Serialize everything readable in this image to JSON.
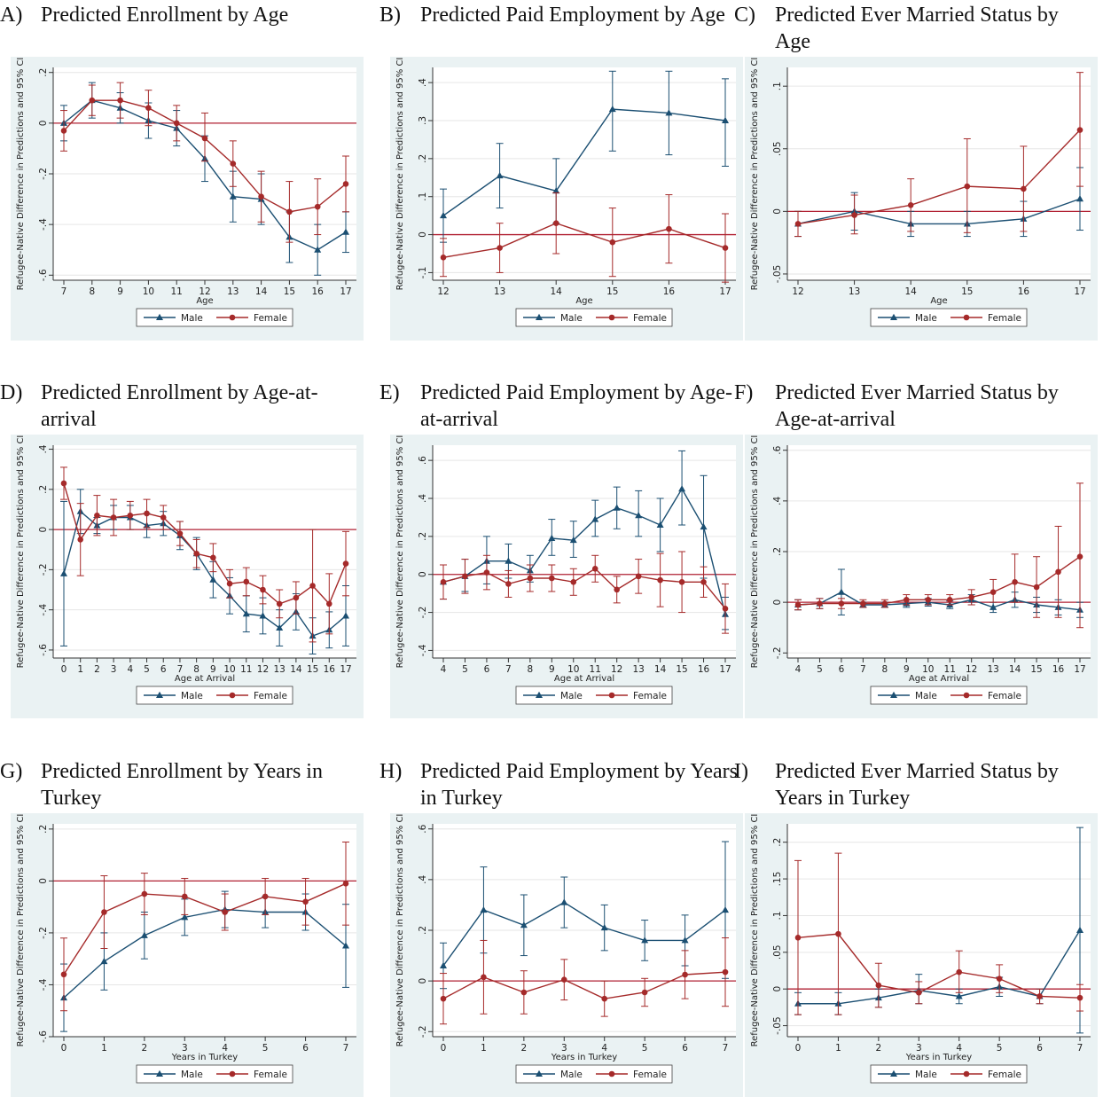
{
  "colors": {
    "male": "#1b4f72",
    "female": "#a52a2a",
    "zero_line": "#b22234",
    "panel_bg": "#eaf2f3",
    "plot_bg": "#ffffff"
  },
  "ylabel": "Refugee-Native Difference in Predictions and 95% CI",
  "legend": {
    "male": "Male",
    "female": "Female"
  },
  "chart_data": [
    {
      "id": "A",
      "letter": "A)",
      "title": "Predicted Enrollment by Age",
      "type": "line",
      "xlabel": "Age",
      "x": [
        7,
        8,
        9,
        10,
        11,
        12,
        13,
        14,
        15,
        16,
        17
      ],
      "xticks": [
        "7",
        "8",
        "9",
        "10",
        "11",
        "12",
        "13",
        "14",
        "15",
        "16",
        "17"
      ],
      "ylim": [
        -0.62,
        0.22
      ],
      "yticks": [
        -0.6,
        -0.4,
        -0.2,
        0,
        0.2
      ],
      "yticklabels": [
        "-.6",
        "-.4",
        "-.2",
        "0",
        ".2"
      ],
      "series": [
        {
          "name": "Male",
          "values": [
            0.0,
            0.09,
            0.06,
            0.01,
            -0.02,
            -0.14,
            -0.29,
            -0.3,
            -0.45,
            -0.5,
            -0.43
          ],
          "lo": [
            -0.07,
            0.02,
            0.0,
            -0.06,
            -0.09,
            -0.23,
            -0.39,
            -0.4,
            -0.55,
            -0.6,
            -0.51
          ],
          "hi": [
            0.07,
            0.16,
            0.12,
            0.08,
            0.05,
            -0.05,
            -0.19,
            -0.2,
            -0.35,
            -0.4,
            -0.35
          ]
        },
        {
          "name": "Female",
          "values": [
            -0.03,
            0.09,
            0.09,
            0.06,
            0.0,
            -0.06,
            -0.16,
            -0.29,
            -0.35,
            -0.33,
            -0.24
          ],
          "lo": [
            -0.11,
            0.03,
            0.02,
            -0.01,
            -0.07,
            -0.15,
            -0.25,
            -0.39,
            -0.47,
            -0.44,
            -0.35
          ],
          "hi": [
            0.05,
            0.15,
            0.16,
            0.13,
            0.07,
            0.04,
            -0.07,
            -0.19,
            -0.23,
            -0.22,
            -0.13
          ]
        }
      ]
    },
    {
      "id": "B",
      "letter": "B)",
      "title": "Predicted Paid Employment by Age",
      "type": "line",
      "xlabel": "Age",
      "x": [
        12,
        13,
        14,
        15,
        16,
        17
      ],
      "xticks": [
        "12",
        "13",
        "14",
        "15",
        "16",
        "17"
      ],
      "ylim": [
        -0.12,
        0.44
      ],
      "yticks": [
        -0.1,
        0,
        0.1,
        0.2,
        0.3,
        0.4
      ],
      "yticklabels": [
        "-.1",
        "0",
        ".1",
        ".2",
        ".3",
        ".4"
      ],
      "series": [
        {
          "name": "Male",
          "values": [
            0.05,
            0.155,
            0.115,
            0.33,
            0.32,
            0.3
          ],
          "lo": [
            -0.02,
            0.07,
            0.03,
            0.22,
            0.21,
            0.18
          ],
          "hi": [
            0.12,
            0.24,
            0.2,
            0.43,
            0.43,
            0.41
          ]
        },
        {
          "name": "Female",
          "values": [
            -0.06,
            -0.035,
            0.03,
            -0.02,
            0.015,
            -0.035
          ],
          "lo": [
            -0.11,
            -0.1,
            -0.05,
            -0.11,
            -0.075,
            -0.125
          ],
          "hi": [
            -0.01,
            0.03,
            0.11,
            0.07,
            0.105,
            0.055
          ]
        }
      ]
    },
    {
      "id": "C",
      "letter": "C)",
      "title": "Predicted Ever Married Status by Age",
      "type": "line",
      "xlabel": "Age",
      "x": [
        12,
        13,
        14,
        15,
        16,
        17
      ],
      "xticks": [
        "12",
        "13",
        "14",
        "15",
        "16",
        "17"
      ],
      "ylim": [
        -0.055,
        0.115
      ],
      "yticks": [
        -0.05,
        0,
        0.05,
        0.1
      ],
      "yticklabels": [
        "-.05",
        "0",
        ".05",
        ".1"
      ],
      "series": [
        {
          "name": "Male",
          "values": [
            -0.01,
            0.0,
            -0.01,
            -0.01,
            -0.006,
            0.01
          ],
          "lo": [
            -0.02,
            -0.015,
            -0.02,
            -0.02,
            -0.02,
            -0.015
          ],
          "hi": [
            0.0,
            0.015,
            0.0,
            0.0,
            0.008,
            0.035
          ]
        },
        {
          "name": "Female",
          "values": [
            -0.01,
            -0.003,
            0.005,
            0.02,
            0.018,
            0.065
          ],
          "lo": [
            -0.02,
            -0.018,
            -0.016,
            -0.017,
            -0.016,
            0.02
          ],
          "hi": [
            0.0,
            0.013,
            0.026,
            0.058,
            0.052,
            0.111
          ]
        }
      ]
    },
    {
      "id": "D",
      "letter": "D)",
      "title": "Predicted Enrollment by Age-at-arrival",
      "type": "line",
      "xlabel": "Age at Arrival",
      "x": [
        0,
        1,
        2,
        3,
        4,
        5,
        6,
        7,
        8,
        9,
        10,
        11,
        12,
        13,
        14,
        15,
        16,
        17
      ],
      "xticks": [
        "0",
        "1",
        "2",
        "3",
        "4",
        "5",
        "6",
        "7",
        "8",
        "9",
        "10",
        "11",
        "12",
        "13",
        "14",
        "15",
        "16",
        "17"
      ],
      "ylim": [
        -0.64,
        0.42
      ],
      "yticks": [
        -0.6,
        -0.4,
        -0.2,
        0,
        0.2,
        0.4
      ],
      "yticklabels": [
        "-.6",
        "-.4",
        "-.2",
        "0",
        ".2",
        ".4"
      ],
      "series": [
        {
          "name": "Male",
          "values": [
            -0.22,
            0.09,
            0.02,
            0.06,
            0.06,
            0.02,
            0.03,
            -0.03,
            -0.12,
            -0.25,
            -0.33,
            -0.42,
            -0.43,
            -0.49,
            -0.41,
            -0.53,
            -0.5,
            -0.43
          ],
          "lo": [
            -0.58,
            -0.02,
            -0.02,
            0.0,
            0.0,
            -0.04,
            -0.03,
            -0.1,
            -0.2,
            -0.34,
            -0.42,
            -0.51,
            -0.52,
            -0.58,
            -0.5,
            -0.62,
            -0.59,
            -0.58
          ],
          "hi": [
            0.14,
            0.2,
            0.06,
            0.12,
            0.12,
            0.08,
            0.09,
            0.04,
            -0.04,
            -0.16,
            -0.24,
            -0.33,
            -0.34,
            -0.4,
            -0.32,
            -0.44,
            -0.41,
            -0.28
          ]
        },
        {
          "name": "Female",
          "values": [
            0.23,
            -0.05,
            0.07,
            0.06,
            0.07,
            0.08,
            0.06,
            -0.02,
            -0.12,
            -0.14,
            -0.27,
            -0.26,
            -0.3,
            -0.37,
            -0.34,
            -0.28,
            -0.37,
            -0.17
          ],
          "lo": [
            0.15,
            -0.23,
            -0.03,
            -0.03,
            0.0,
            0.01,
            0.0,
            -0.08,
            -0.19,
            -0.21,
            -0.34,
            -0.33,
            -0.37,
            -0.44,
            -0.42,
            -0.56,
            -0.52,
            -0.33
          ],
          "hi": [
            0.31,
            0.13,
            0.17,
            0.15,
            0.14,
            0.15,
            0.12,
            0.04,
            -0.05,
            -0.07,
            -0.2,
            -0.19,
            -0.23,
            -0.3,
            -0.26,
            0.0,
            -0.22,
            -0.01
          ]
        }
      ]
    },
    {
      "id": "E",
      "letter": "E)",
      "title": "Predicted Paid Employment by Age-at-arrival",
      "type": "line",
      "xlabel": "Age at Arrival",
      "x": [
        4,
        5,
        6,
        7,
        8,
        9,
        10,
        11,
        12,
        13,
        14,
        15,
        16,
        17
      ],
      "xticks": [
        "4",
        "5",
        "6",
        "7",
        "8",
        "9",
        "10",
        "11",
        "12",
        "13",
        "14",
        "15",
        "16",
        "17"
      ],
      "ylim": [
        -0.44,
        0.68
      ],
      "yticks": [
        -0.4,
        -0.2,
        0,
        0.2,
        0.4,
        0.6
      ],
      "yticklabels": [
        "-.4",
        "-.2",
        "0",
        ".2",
        ".4",
        ".6"
      ],
      "series": [
        {
          "name": "Male",
          "values": [
            -0.04,
            -0.01,
            0.07,
            0.07,
            0.02,
            0.19,
            0.18,
            0.29,
            0.35,
            0.31,
            0.26,
            0.45,
            0.25,
            -0.21
          ],
          "lo": [
            -0.13,
            -0.09,
            -0.05,
            -0.02,
            -0.04,
            0.1,
            0.09,
            0.2,
            0.24,
            0.2,
            0.12,
            0.26,
            -0.02,
            -0.29
          ],
          "hi": [
            0.05,
            0.08,
            0.2,
            0.16,
            0.1,
            0.29,
            0.28,
            0.39,
            0.46,
            0.44,
            0.4,
            0.65,
            0.52,
            -0.12
          ]
        },
        {
          "name": "Female",
          "values": [
            -0.04,
            -0.01,
            0.01,
            -0.05,
            -0.02,
            -0.02,
            -0.04,
            0.03,
            -0.08,
            -0.01,
            -0.03,
            -0.04,
            -0.04,
            -0.18
          ],
          "lo": [
            -0.13,
            -0.1,
            -0.08,
            -0.12,
            -0.09,
            -0.09,
            -0.11,
            -0.04,
            -0.15,
            -0.1,
            -0.17,
            -0.2,
            -0.12,
            -0.31
          ],
          "hi": [
            0.05,
            0.08,
            0.1,
            0.02,
            0.05,
            0.05,
            0.03,
            0.1,
            -0.01,
            0.08,
            0.11,
            0.12,
            0.04,
            -0.05
          ]
        }
      ]
    },
    {
      "id": "F",
      "letter": "F)",
      "title": "Predicted Ever Married Status by Age-at-arrival",
      "type": "line",
      "xlabel": "Age at Arrival",
      "x": [
        4,
        5,
        6,
        7,
        8,
        9,
        10,
        11,
        12,
        13,
        14,
        15,
        16,
        17
      ],
      "xticks": [
        "4",
        "5",
        "6",
        "7",
        "8",
        "9",
        "10",
        "11",
        "12",
        "13",
        "14",
        "15",
        "16",
        "17"
      ],
      "ylim": [
        -0.22,
        0.62
      ],
      "yticks": [
        -0.2,
        0,
        0.2,
        0.4,
        0.6
      ],
      "yticklabels": [
        "-.2",
        "0",
        ".2",
        ".4",
        ".6"
      ],
      "series": [
        {
          "name": "Male",
          "values": [
            -0.01,
            -0.005,
            0.04,
            -0.01,
            -0.01,
            -0.005,
            0.0,
            -0.01,
            0.01,
            -0.02,
            0.01,
            -0.01,
            -0.02,
            -0.03
          ],
          "lo": [
            -0.03,
            -0.025,
            -0.05,
            -0.02,
            -0.02,
            -0.02,
            -0.015,
            -0.025,
            -0.01,
            -0.04,
            -0.02,
            -0.04,
            -0.05,
            -0.06
          ],
          "hi": [
            0.01,
            0.015,
            0.13,
            0.0,
            0.0,
            0.01,
            0.015,
            0.005,
            0.03,
            0.0,
            0.04,
            0.02,
            0.01,
            0.0
          ]
        },
        {
          "name": "Female",
          "values": [
            -0.01,
            -0.005,
            -0.005,
            -0.005,
            -0.005,
            0.01,
            0.01,
            0.01,
            0.02,
            0.04,
            0.08,
            0.06,
            0.12,
            0.18
          ],
          "lo": [
            -0.03,
            -0.025,
            -0.025,
            -0.02,
            -0.02,
            -0.01,
            -0.01,
            -0.01,
            -0.01,
            0.0,
            0.0,
            -0.06,
            -0.06,
            -0.1
          ],
          "hi": [
            0.01,
            0.015,
            0.015,
            0.01,
            0.01,
            0.03,
            0.03,
            0.03,
            0.05,
            0.09,
            0.19,
            0.18,
            0.3,
            0.47
          ]
        }
      ]
    },
    {
      "id": "G",
      "letter": "G)",
      "title": "Predicted Enrollment by Years in Turkey",
      "type": "line",
      "xlabel": "Years in Turkey",
      "x": [
        0,
        1,
        2,
        3,
        4,
        5,
        6,
        7
      ],
      "xticks": [
        "0",
        "1",
        "2",
        "3",
        "4",
        "5",
        "6",
        "7"
      ],
      "ylim": [
        -0.6,
        0.22
      ],
      "yticks": [
        -0.6,
        -0.4,
        -0.2,
        0,
        0.2
      ],
      "yticklabels": [
        "-.6",
        "-.4",
        "-.2",
        "0",
        ".2"
      ],
      "series": [
        {
          "name": "Male",
          "values": [
            -0.45,
            -0.31,
            -0.21,
            -0.14,
            -0.11,
            -0.12,
            -0.12,
            -0.25
          ],
          "lo": [
            -0.58,
            -0.42,
            -0.3,
            -0.21,
            -0.18,
            -0.18,
            -0.19,
            -0.41
          ],
          "hi": [
            -0.32,
            -0.2,
            -0.12,
            -0.07,
            -0.04,
            -0.06,
            -0.05,
            -0.09
          ]
        },
        {
          "name": "Female",
          "values": [
            -0.36,
            -0.12,
            -0.05,
            -0.06,
            -0.12,
            -0.06,
            -0.08,
            -0.01
          ],
          "lo": [
            -0.5,
            -0.26,
            -0.13,
            -0.13,
            -0.19,
            -0.13,
            -0.17,
            -0.17
          ],
          "hi": [
            -0.22,
            0.02,
            0.03,
            0.01,
            -0.05,
            0.01,
            0.01,
            0.15
          ]
        }
      ]
    },
    {
      "id": "H",
      "letter": "H)",
      "title": "Predicted Paid Employment by Years in Turkey",
      "type": "line",
      "xlabel": "Years in Turkey",
      "x": [
        0,
        1,
        2,
        3,
        4,
        5,
        6,
        7
      ],
      "xticks": [
        "0",
        "1",
        "2",
        "3",
        "4",
        "5",
        "6",
        "7"
      ],
      "ylim": [
        -0.22,
        0.62
      ],
      "yticks": [
        -0.2,
        0,
        0.2,
        0.4,
        0.6
      ],
      "yticklabels": [
        "-.2",
        "0",
        ".2",
        ".4",
        ".6"
      ],
      "series": [
        {
          "name": "Male",
          "values": [
            0.06,
            0.28,
            0.22,
            0.31,
            0.21,
            0.16,
            0.16,
            0.28
          ],
          "lo": [
            -0.03,
            0.11,
            0.1,
            0.21,
            0.12,
            0.08,
            0.06,
            0.01
          ],
          "hi": [
            0.15,
            0.45,
            0.34,
            0.41,
            0.3,
            0.24,
            0.26,
            0.55
          ]
        },
        {
          "name": "Female",
          "values": [
            -0.07,
            0.015,
            -0.045,
            0.005,
            -0.07,
            -0.045,
            0.025,
            0.035
          ],
          "lo": [
            -0.17,
            -0.13,
            -0.13,
            -0.075,
            -0.14,
            -0.1,
            -0.07,
            -0.1
          ],
          "hi": [
            0.03,
            0.16,
            0.04,
            0.085,
            0.0,
            0.01,
            0.12,
            0.17
          ]
        }
      ]
    },
    {
      "id": "I",
      "letter": "I)",
      "title": "Predicted Ever Married Status by Years in Turkey",
      "type": "line",
      "xlabel": "Years in Turkey",
      "x": [
        0,
        1,
        2,
        3,
        4,
        5,
        6,
        7
      ],
      "xticks": [
        "0",
        "1",
        "2",
        "3",
        "4",
        "5",
        "6",
        "7"
      ],
      "ylim": [
        -0.065,
        0.225
      ],
      "yticks": [
        -0.05,
        0,
        0.05,
        0.1,
        0.15,
        0.2
      ],
      "yticklabels": [
        "-.05",
        "0",
        ".05",
        ".1",
        ".15",
        ".2"
      ],
      "series": [
        {
          "name": "Male",
          "values": [
            -0.02,
            -0.02,
            -0.012,
            -0.002,
            -0.01,
            0.003,
            -0.01,
            0.08
          ],
          "lo": [
            -0.035,
            -0.035,
            -0.025,
            -0.02,
            -0.02,
            -0.01,
            -0.02,
            -0.06
          ],
          "hi": [
            -0.005,
            -0.005,
            0.0,
            0.02,
            0.0,
            0.016,
            0.0,
            0.22
          ]
        },
        {
          "name": "Female",
          "values": [
            0.07,
            0.075,
            0.005,
            -0.005,
            0.023,
            0.014,
            -0.01,
            -0.012
          ],
          "lo": [
            -0.035,
            -0.035,
            -0.025,
            -0.02,
            -0.005,
            -0.005,
            -0.02,
            -0.03
          ],
          "hi": [
            0.175,
            0.185,
            0.035,
            0.01,
            0.052,
            0.033,
            0.0,
            0.006
          ]
        }
      ]
    }
  ]
}
